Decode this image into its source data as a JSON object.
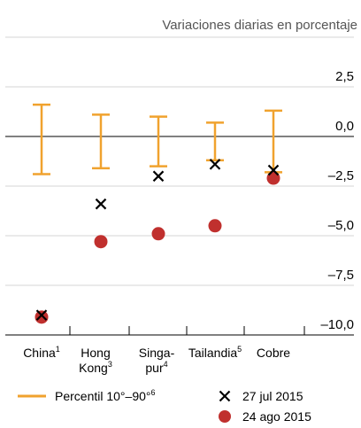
{
  "chart_data": {
    "type": "scatter",
    "subtitle": "Variaciones diarias en porcentaje",
    "ylim": [
      -10.5,
      4.5
    ],
    "yticks": [
      2.5,
      0.0,
      -2.5,
      -5.0,
      -7.5,
      -10.0
    ],
    "ytick_labels": [
      "2,5",
      "0,0",
      "–2,5",
      "–5,0",
      "–7,5",
      "–10,0"
    ],
    "grid": true,
    "categories": [
      {
        "lines": [
          {
            "text": "China",
            "sup": "1"
          }
        ]
      },
      {
        "lines": [
          {
            "text": "Hong",
            "sup": ""
          },
          {
            "text": "Kong",
            "sup": "3"
          }
        ]
      },
      {
        "lines": [
          {
            "text": "Singa-",
            "sup": ""
          },
          {
            "text": "pur",
            "sup": "4"
          }
        ]
      },
      {
        "lines": [
          {
            "text": "Tailandia",
            "sup": "5"
          }
        ]
      },
      {
        "lines": [
          {
            "text": "Cobre",
            "sup": ""
          }
        ]
      }
    ],
    "percentile_range": {
      "label": "Percentil 10°–90°",
      "label_sup": "6",
      "color": "#f0a22e",
      "low": [
        -1.9,
        -1.6,
        -1.5,
        -1.2,
        -1.8
      ],
      "high": [
        1.6,
        1.1,
        1.0,
        0.7,
        1.3
      ]
    },
    "series": [
      {
        "name": "27 jul 2015",
        "marker": "x",
        "color": "#000000",
        "values": [
          -9.0,
          -3.4,
          -2.0,
          -1.4,
          -1.7
        ]
      },
      {
        "name": "24 ago 2015",
        "marker": "circle",
        "color": "#c0302e",
        "values": [
          -9.1,
          -5.3,
          -4.9,
          -4.5,
          -2.1
        ]
      }
    ]
  }
}
